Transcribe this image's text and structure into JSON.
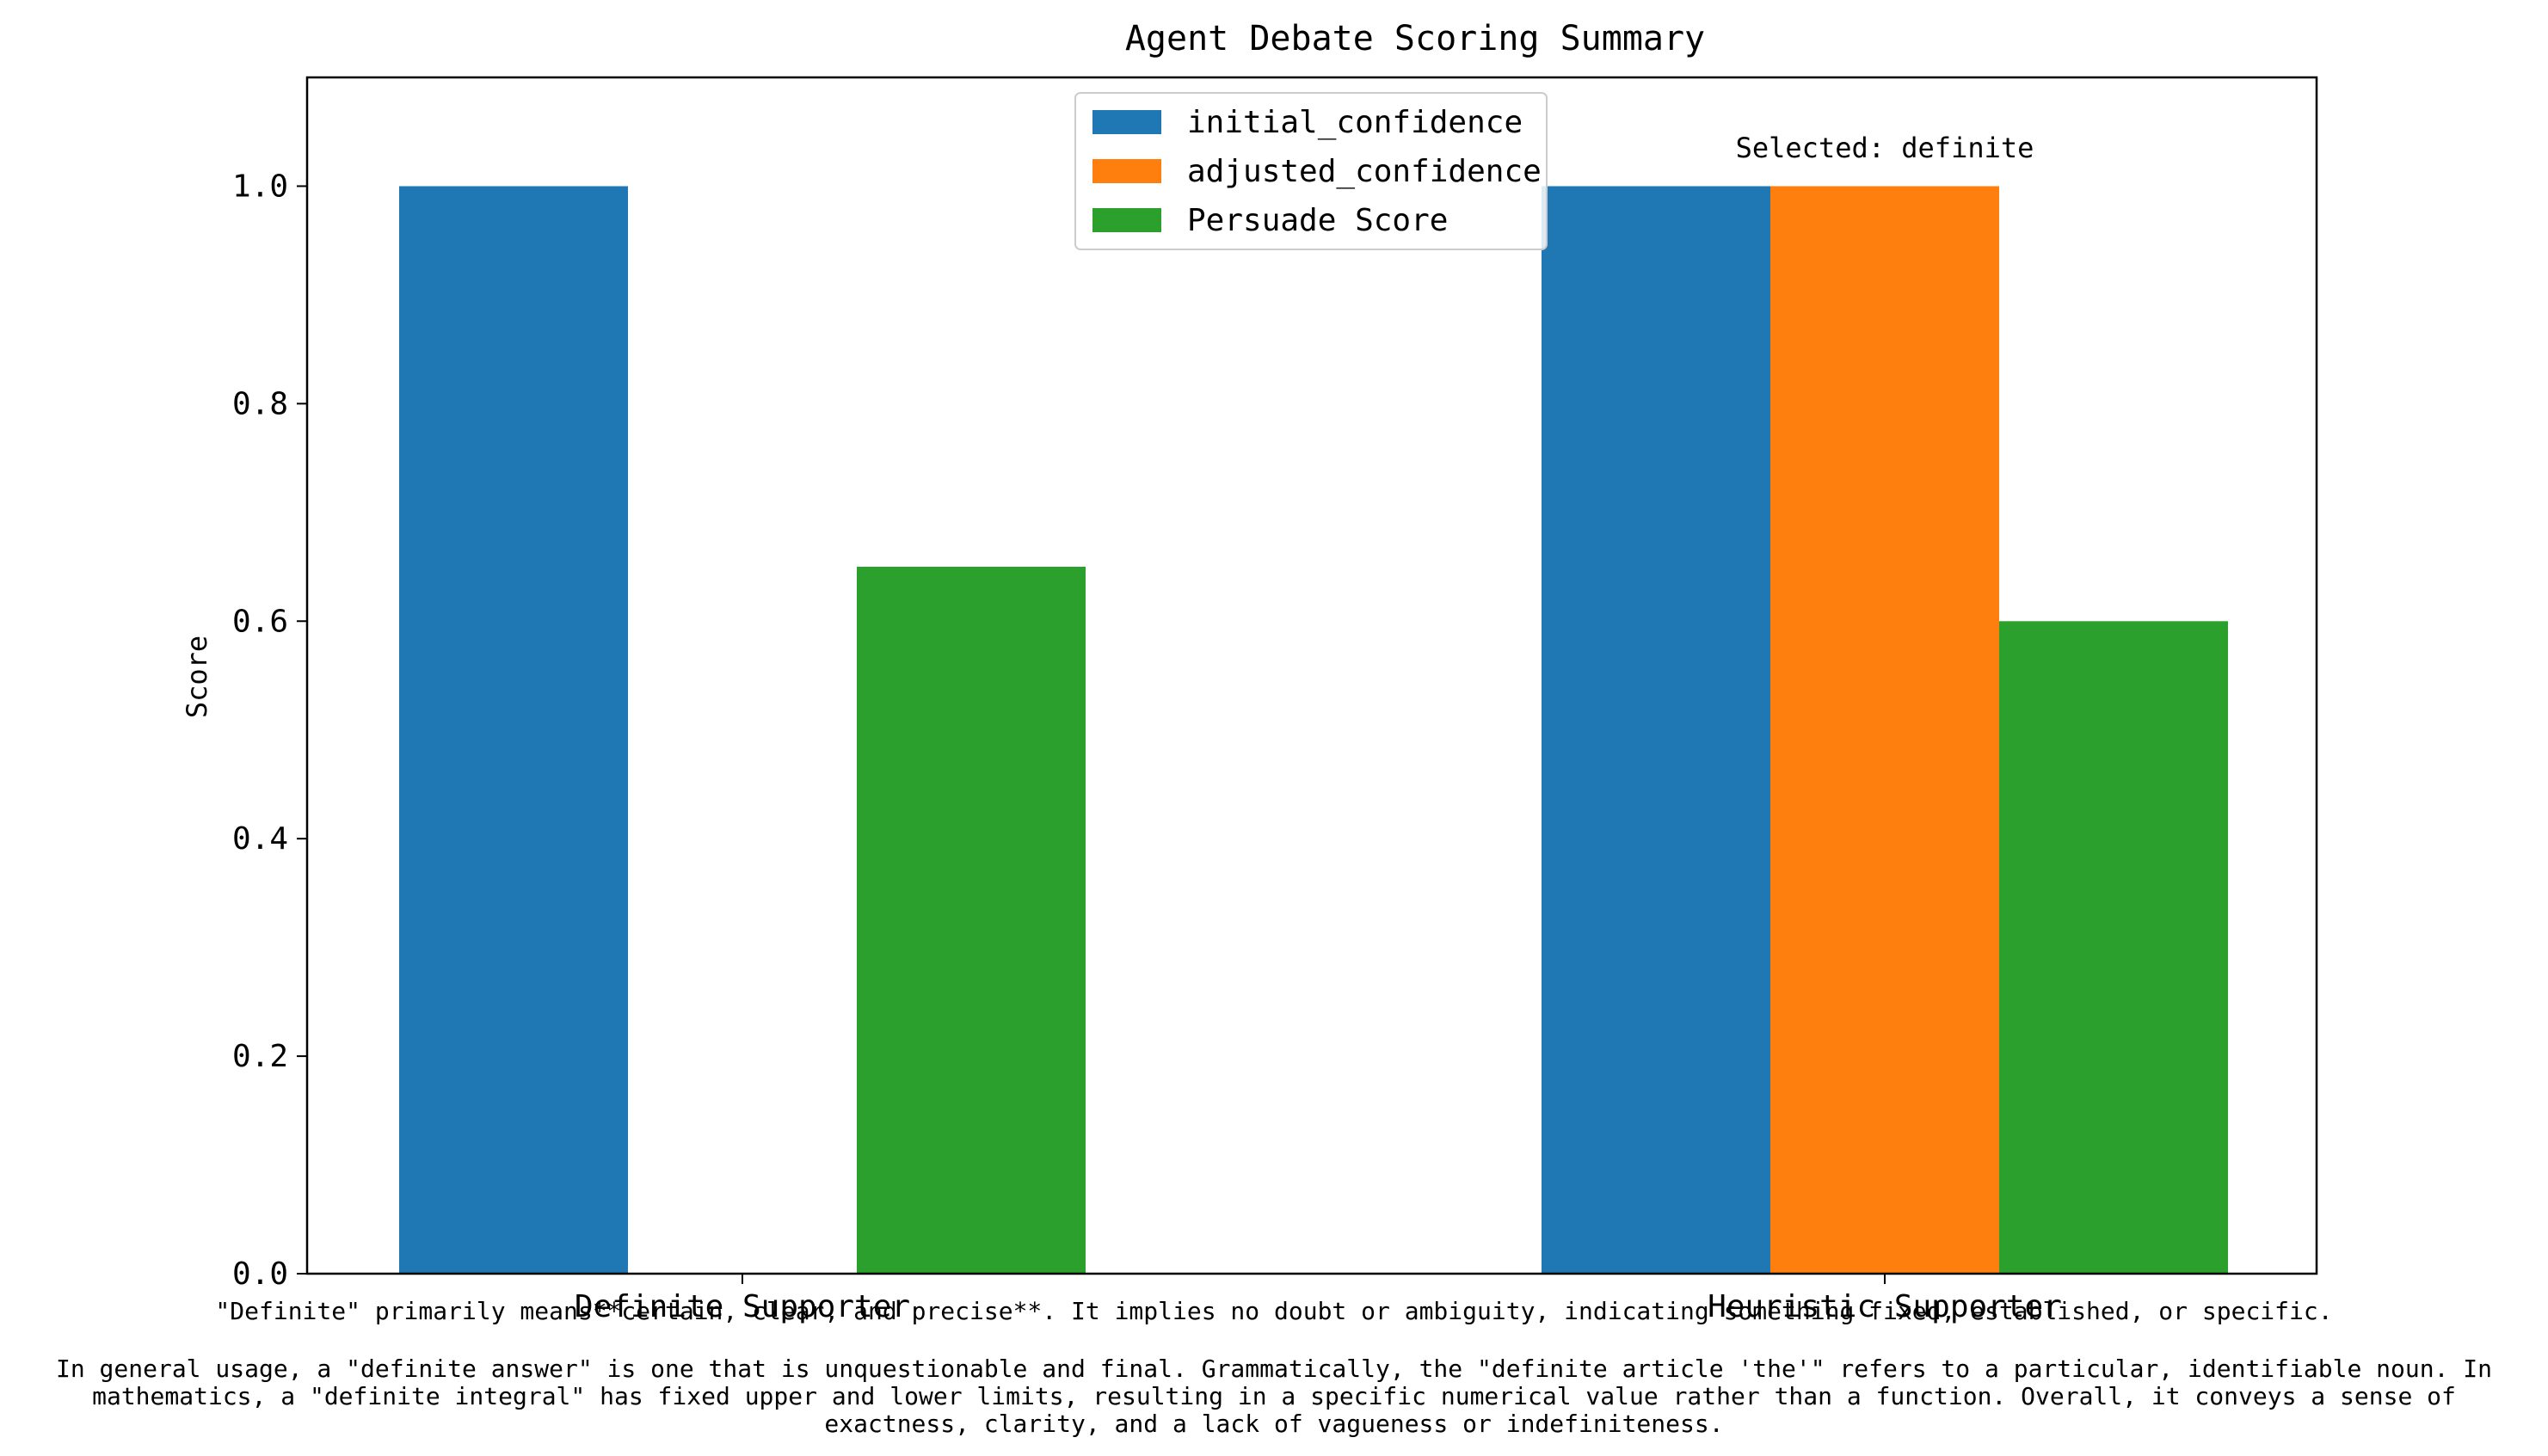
{
  "chart_data": {
    "type": "bar",
    "title": "Agent Debate Scoring Summary",
    "xlabel": "",
    "ylabel": "Score",
    "ylim": [
      0,
      1.1
    ],
    "yticks": [
      0.0,
      0.2,
      0.4,
      0.6,
      0.8,
      1.0
    ],
    "ytick_labels": [
      "0.0",
      "0.2",
      "0.4",
      "0.6",
      "0.8",
      "1.0"
    ],
    "categories": [
      "Definite Supporter",
      "Heuristic Supporter"
    ],
    "series": [
      {
        "name": "initial_confidence",
        "color": "#1f77b4",
        "values": [
          1.0,
          1.0
        ]
      },
      {
        "name": "adjusted_confidence",
        "color": "#ff7f0e",
        "values": [
          0.0,
          1.0
        ]
      },
      {
        "name": "Persuade Score",
        "color": "#2ca02c",
        "values": [
          0.65,
          0.6
        ]
      }
    ],
    "legend_position": "top-center",
    "annotation": "Selected: definite",
    "grid": false
  },
  "footnote": {
    "line1": "\"Definite\" primarily means**certain, clear, and precise**. It implies no doubt or ambiguity, indicating something fixed, established, or specific.",
    "paragraph": "In general usage, a \"definite answer\" is one that is unquestionable and final. Grammatically, the \"definite article 'the'\" refers to a particular, identifiable noun. In mathematics, a \"definite integral\" has fixed upper and lower limits, resulting in a specific numerical value rather than a function. Overall, it conveys a sense of exactness, clarity, and a lack of vagueness or indefiniteness."
  }
}
